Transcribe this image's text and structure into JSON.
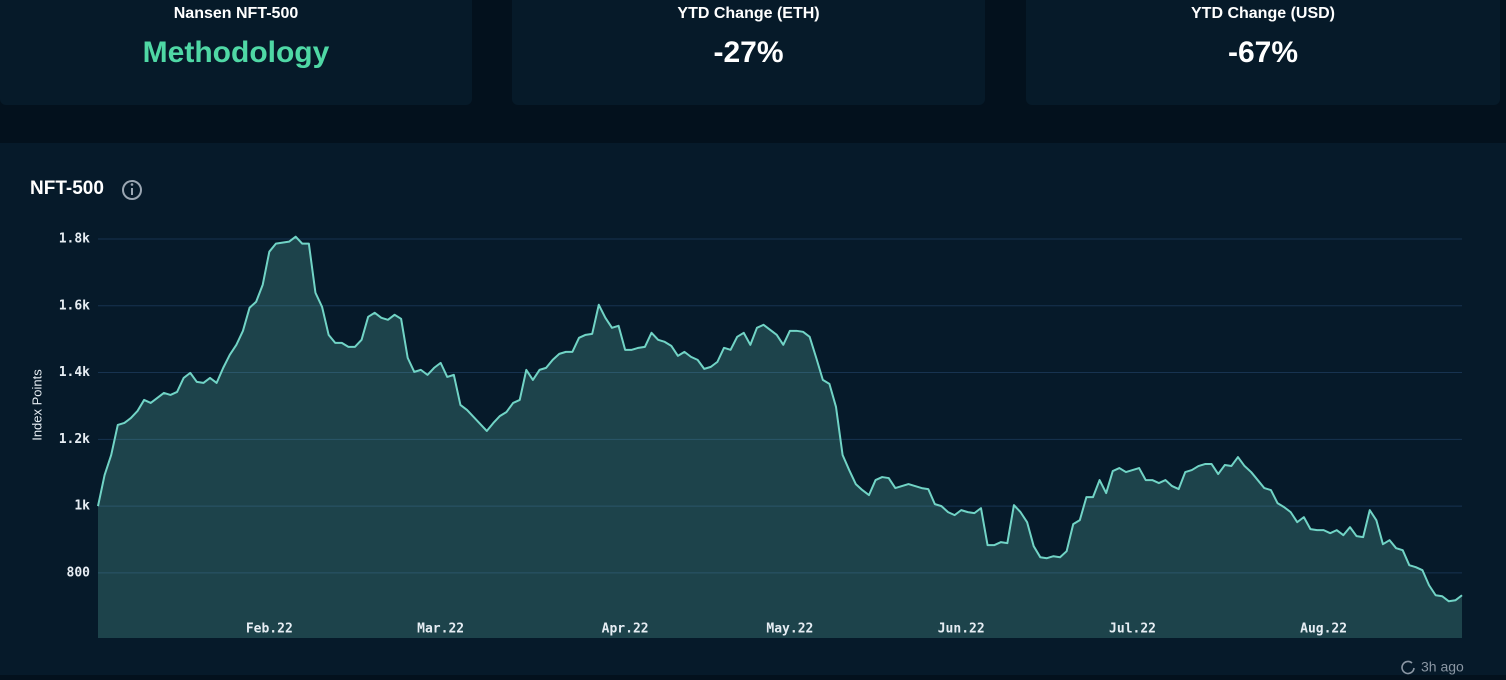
{
  "cards": [
    {
      "label": "Nansen NFT-500",
      "value": "Methodology"
    },
    {
      "label": "YTD Change (ETH)",
      "value": "-27%"
    },
    {
      "label": "YTD Change (USD)",
      "value": "-67%"
    }
  ],
  "footer": "3h ago",
  "chart_data": {
    "type": "area",
    "title": "NFT-500",
    "y_label": "Index Points",
    "color": "#71d4c6",
    "grid": true,
    "ylim": [
      605,
      1800
    ],
    "yticks": [
      {
        "value": 800,
        "label": "800"
      },
      {
        "value": 1000,
        "label": "1k"
      },
      {
        "value": 1200,
        "label": "1.2k"
      },
      {
        "value": 1400,
        "label": "1.4k"
      },
      {
        "value": 1600,
        "label": "1.6k"
      },
      {
        "value": 1800,
        "label": "1.8k"
      }
    ],
    "categories": [
      null,
      null,
      null,
      null,
      null,
      null,
      null,
      null,
      null,
      null,
      null,
      null,
      null,
      null,
      null,
      null,
      null,
      null,
      null,
      null,
      null,
      null,
      null,
      null,
      null,
      null,
      "Feb.22",
      null,
      null,
      null,
      null,
      null,
      null,
      null,
      null,
      null,
      null,
      null,
      null,
      null,
      null,
      null,
      null,
      null,
      null,
      null,
      null,
      null,
      null,
      null,
      null,
      null,
      "Mar.22",
      null,
      null,
      null,
      null,
      null,
      null,
      null,
      null,
      null,
      null,
      null,
      null,
      null,
      null,
      null,
      null,
      null,
      null,
      null,
      null,
      null,
      null,
      null,
      null,
      null,
      null,
      null,
      "Apr.22",
      null,
      null,
      null,
      null,
      null,
      null,
      null,
      null,
      null,
      null,
      null,
      null,
      null,
      null,
      null,
      null,
      null,
      null,
      null,
      null,
      null,
      null,
      null,
      null,
      "May.22",
      null,
      null,
      null,
      null,
      null,
      null,
      null,
      null,
      null,
      null,
      null,
      null,
      null,
      null,
      null,
      null,
      null,
      null,
      null,
      null,
      null,
      null,
      null,
      null,
      null,
      "Jun.22",
      null,
      null,
      null,
      null,
      null,
      null,
      null,
      null,
      null,
      null,
      null,
      null,
      null,
      null,
      null,
      null,
      null,
      null,
      null,
      null,
      null,
      null,
      null,
      null,
      null,
      "Jul.22",
      null,
      null,
      null,
      null,
      null,
      null,
      null,
      null,
      null,
      null,
      null,
      null,
      null,
      null,
      null,
      null,
      null,
      null,
      null,
      null,
      null,
      null,
      null,
      null,
      null,
      null,
      null,
      null,
      "Aug.22",
      null,
      null,
      null,
      null,
      null,
      null,
      null,
      null,
      null,
      null,
      null,
      null,
      null,
      null,
      null,
      null,
      null,
      null,
      null,
      null,
      null
    ],
    "values": [
      1000,
      1093,
      1153,
      1243,
      1249,
      1264,
      1285,
      1318,
      1309,
      1324,
      1339,
      1333,
      1342,
      1384,
      1399,
      1372,
      1369,
      1384,
      1369,
      1414,
      1453,
      1483,
      1525,
      1594,
      1612,
      1663,
      1762,
      1786,
      1789,
      1792,
      1807,
      1786,
      1786,
      1639,
      1597,
      1513,
      1489,
      1489,
      1477,
      1477,
      1498,
      1567,
      1579,
      1564,
      1558,
      1573,
      1561,
      1444,
      1402,
      1408,
      1393,
      1414,
      1429,
      1387,
      1393,
      1303,
      1288,
      1267,
      1246,
      1225,
      1249,
      1270,
      1282,
      1309,
      1318,
      1408,
      1378,
      1408,
      1414,
      1438,
      1456,
      1462,
      1462,
      1504,
      1513,
      1516,
      1603,
      1564,
      1534,
      1540,
      1468,
      1468,
      1474,
      1477,
      1519,
      1498,
      1492,
      1480,
      1450,
      1462,
      1447,
      1438,
      1411,
      1417,
      1432,
      1474,
      1468,
      1507,
      1519,
      1483,
      1534,
      1543,
      1528,
      1513,
      1483,
      1525,
      1525,
      1522,
      1507,
      1444,
      1378,
      1366,
      1297,
      1153,
      1108,
      1066,
      1048,
      1033,
      1078,
      1087,
      1084,
      1054,
      1060,
      1066,
      1060,
      1054,
      1051,
      1006,
      1000,
      982,
      973,
      988,
      982,
      979,
      994,
      883,
      883,
      892,
      889,
      1003,
      982,
      952,
      880,
      847,
      844,
      850,
      847,
      865,
      946,
      958,
      1027,
      1027,
      1078,
      1039,
      1105,
      1114,
      1102,
      1108,
      1114,
      1078,
      1078,
      1069,
      1078,
      1060,
      1051,
      1102,
      1108,
      1120,
      1126,
      1126,
      1096,
      1123,
      1120,
      1147,
      1120,
      1102,
      1078,
      1054,
      1048,
      1009,
      997,
      982,
      952,
      967,
      931,
      928,
      928,
      919,
      928,
      913,
      937,
      910,
      907,
      988,
      958,
      886,
      898,
      874,
      868,
      823,
      817,
      808,
      763,
      733,
      730,
      715,
      718,
      733
    ]
  }
}
